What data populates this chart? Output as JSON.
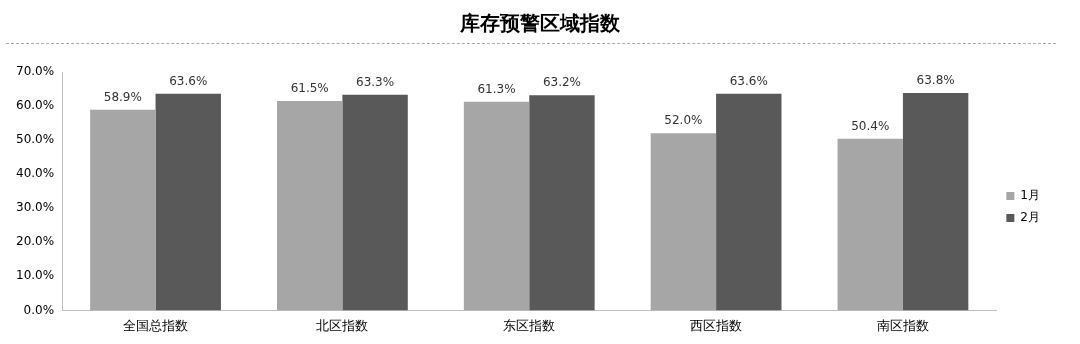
{
  "chart_data": {
    "type": "bar",
    "title": "库存预警区域指数",
    "categories": [
      "全国总指数",
      "北区指数",
      "东区指数",
      "西区指数",
      "南区指数"
    ],
    "series": [
      {
        "name": "1月",
        "color": "#a6a6a6",
        "values": [
          58.9,
          61.5,
          61.3,
          52.0,
          50.4
        ],
        "value_labels": [
          "58.9%",
          "61.5%",
          "61.3%",
          "52.0%",
          "50.4%"
        ]
      },
      {
        "name": "2月",
        "color": "#595959",
        "values": [
          63.6,
          63.3,
          63.2,
          63.6,
          63.8
        ],
        "value_labels": [
          "63.6%",
          "63.3%",
          "63.2%",
          "63.6%",
          "63.8%"
        ]
      }
    ],
    "ylim": [
      0,
      70
    ],
    "yticks": [
      {
        "value": 0,
        "label": "0.0%"
      },
      {
        "value": 10,
        "label": "10.0%"
      },
      {
        "value": 20,
        "label": "20.0%"
      },
      {
        "value": 30,
        "label": "30.0%"
      },
      {
        "value": 40,
        "label": "40.0%"
      },
      {
        "value": 50,
        "label": "50.0%"
      },
      {
        "value": 60,
        "label": "60.0%"
      },
      {
        "value": 70,
        "label": "70.0%"
      }
    ],
    "grid": false,
    "legend": "right"
  }
}
